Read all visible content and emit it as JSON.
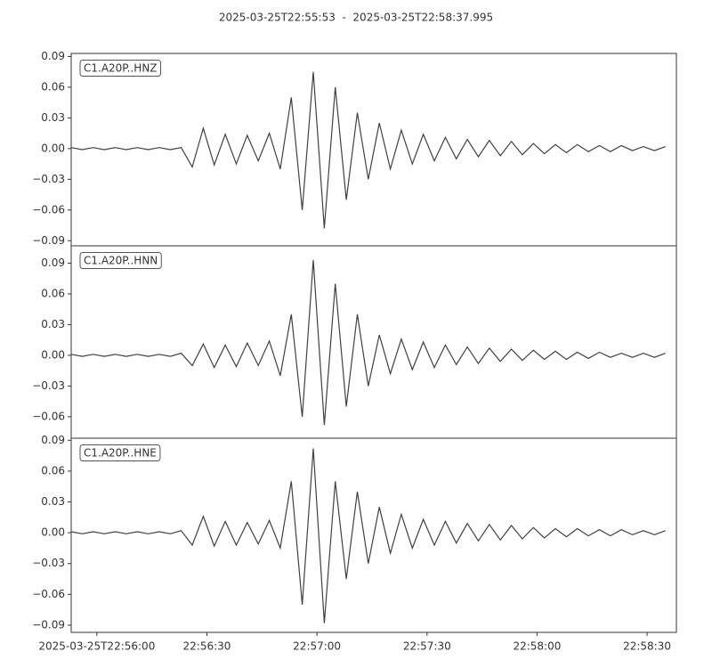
{
  "title": "2025-03-25T22:55:53  -  2025-03-25T22:58:37.995",
  "chart_data": [
    {
      "type": "line",
      "xlim": [
        0,
        164.995
      ],
      "ylim": [
        -0.095,
        0.093
      ],
      "yticks": [
        {
          "value": 0.09,
          "label": "0.09"
        },
        {
          "value": 0.06,
          "label": "0.06"
        },
        {
          "value": 0.03,
          "label": "0.03"
        },
        {
          "value": 0,
          "label": "0.00"
        },
        {
          "value": -0.03,
          "label": "−0.03"
        },
        {
          "value": -0.06,
          "label": "−0.06"
        },
        {
          "value": -0.09,
          "label": "−0.09"
        }
      ],
      "x": [
        0,
        3,
        6,
        9,
        12,
        15,
        18,
        21,
        24,
        27,
        30,
        33,
        36,
        39,
        42,
        45,
        48,
        51,
        54,
        57,
        60,
        63,
        66,
        69,
        72,
        75,
        78,
        81,
        84,
        87,
        90,
        93,
        96,
        99,
        102,
        105,
        108,
        111,
        114,
        117,
        120,
        123,
        126,
        129,
        132,
        135,
        138,
        141,
        144,
        147,
        150,
        153,
        156,
        159,
        162
      ],
      "series": [
        {
          "name": "C1.A20P..HNZ",
          "color": "#404040",
          "values": [
            0.001,
            -0.001,
            0.001,
            -0.001,
            0.001,
            -0.001,
            0.001,
            -0.001,
            0.001,
            -0.001,
            0.001,
            -0.018,
            0.02,
            -0.016,
            0.014,
            -0.015,
            0.013,
            -0.012,
            0.015,
            -0.02,
            0.05,
            -0.06,
            0.075,
            -0.078,
            0.06,
            -0.05,
            0.035,
            -0.03,
            0.025,
            -0.02,
            0.018,
            -0.015,
            0.014,
            -0.012,
            0.011,
            -0.01,
            0.009,
            -0.008,
            0.008,
            -0.007,
            0.007,
            -0.006,
            0.005,
            -0.005,
            0.004,
            -0.004,
            0.004,
            -0.003,
            0.003,
            -0.003,
            0.003,
            -0.002,
            0.002,
            -0.002,
            0.002
          ]
        }
      ]
    },
    {
      "type": "line",
      "xlim": [
        0,
        164.995
      ],
      "ylim": [
        -0.081,
        0.107
      ],
      "yticks": [
        {
          "value": 0.09,
          "label": "0.09"
        },
        {
          "value": 0.06,
          "label": "0.06"
        },
        {
          "value": 0.03,
          "label": "0.03"
        },
        {
          "value": 0,
          "label": "0.00"
        },
        {
          "value": -0.03,
          "label": "−0.03"
        },
        {
          "value": -0.06,
          "label": "−0.06"
        }
      ],
      "x": [
        0,
        3,
        6,
        9,
        12,
        15,
        18,
        21,
        24,
        27,
        30,
        33,
        36,
        39,
        42,
        45,
        48,
        51,
        54,
        57,
        60,
        63,
        66,
        69,
        72,
        75,
        78,
        81,
        84,
        87,
        90,
        93,
        96,
        99,
        102,
        105,
        108,
        111,
        114,
        117,
        120,
        123,
        126,
        129,
        132,
        135,
        138,
        141,
        144,
        147,
        150,
        153,
        156,
        159,
        162
      ],
      "series": [
        {
          "name": "C1.A20P..HNN",
          "color": "#404040",
          "values": [
            0.001,
            -0.001,
            0.001,
            -0.001,
            0.001,
            -0.001,
            0.001,
            -0.001,
            0.001,
            -0.001,
            0.002,
            -0.01,
            0.011,
            -0.012,
            0.01,
            -0.011,
            0.012,
            -0.01,
            0.014,
            -0.02,
            0.04,
            -0.06,
            0.093,
            -0.068,
            0.07,
            -0.05,
            0.04,
            -0.03,
            0.02,
            -0.018,
            0.016,
            -0.014,
            0.013,
            -0.012,
            0.01,
            -0.009,
            0.008,
            -0.008,
            0.007,
            -0.006,
            0.006,
            -0.005,
            0.005,
            -0.004,
            0.004,
            -0.004,
            0.003,
            -0.003,
            0.003,
            -0.002,
            0.002,
            -0.002,
            0.002,
            -0.002,
            0.002
          ]
        }
      ]
    },
    {
      "type": "line",
      "xlim": [
        0,
        164.995
      ],
      "ylim": [
        -0.097,
        0.092
      ],
      "yticks": [
        {
          "value": 0.09,
          "label": "0.09"
        },
        {
          "value": 0.06,
          "label": "0.06"
        },
        {
          "value": 0.03,
          "label": "0.03"
        },
        {
          "value": 0,
          "label": "0.00"
        },
        {
          "value": -0.03,
          "label": "−0.03"
        },
        {
          "value": -0.06,
          "label": "−0.06"
        },
        {
          "value": -0.09,
          "label": "−0.09"
        }
      ],
      "xticks": [
        {
          "value": 7,
          "label": "2025-03-25T22:56:00"
        },
        {
          "value": 37,
          "label": "22:56:30"
        },
        {
          "value": 67,
          "label": "22:57:00"
        },
        {
          "value": 97,
          "label": "22:57:30"
        },
        {
          "value": 127,
          "label": "22:58:00"
        },
        {
          "value": 157,
          "label": "22:58:30"
        }
      ],
      "x": [
        0,
        3,
        6,
        9,
        12,
        15,
        18,
        21,
        24,
        27,
        30,
        33,
        36,
        39,
        42,
        45,
        48,
        51,
        54,
        57,
        60,
        63,
        66,
        69,
        72,
        75,
        78,
        81,
        84,
        87,
        90,
        93,
        96,
        99,
        102,
        105,
        108,
        111,
        114,
        117,
        120,
        123,
        126,
        129,
        132,
        135,
        138,
        141,
        144,
        147,
        150,
        153,
        156,
        159,
        162
      ],
      "series": [
        {
          "name": "C1.A20P..HNE",
          "color": "#404040",
          "values": [
            0.001,
            -0.001,
            0.001,
            -0.001,
            0.001,
            -0.001,
            0.001,
            -0.001,
            0.001,
            -0.001,
            0.002,
            -0.012,
            0.016,
            -0.013,
            0.011,
            -0.012,
            0.01,
            -0.011,
            0.012,
            -0.015,
            0.05,
            -0.07,
            0.082,
            -0.088,
            0.05,
            -0.045,
            0.04,
            -0.03,
            0.025,
            -0.02,
            0.018,
            -0.015,
            0.013,
            -0.012,
            0.011,
            -0.01,
            0.009,
            -0.008,
            0.008,
            -0.007,
            0.007,
            -0.006,
            0.005,
            -0.005,
            0.004,
            -0.004,
            0.004,
            -0.003,
            0.003,
            -0.003,
            0.003,
            -0.002,
            0.002,
            -0.002,
            0.002
          ]
        }
      ]
    }
  ]
}
